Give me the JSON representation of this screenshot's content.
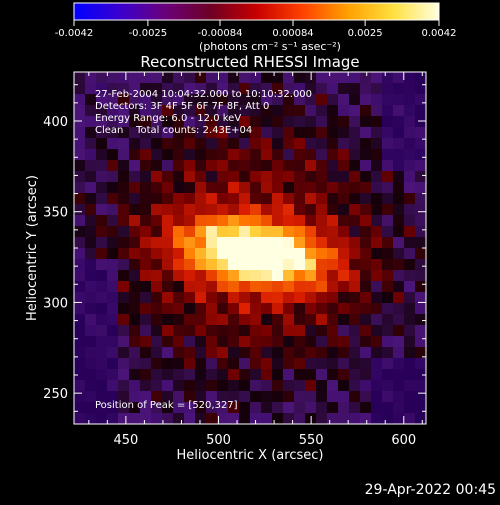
{
  "colorbar": {
    "tick_labels": [
      "-0.0042",
      "-0.0025",
      "-0.00084",
      "0.00084",
      "0.0025",
      "0.0042"
    ],
    "ticks": [
      -0.0042,
      -0.0025,
      -0.00084,
      0.00084,
      0.0025,
      0.0042
    ],
    "range": [
      -0.0042,
      0.0042
    ],
    "unit_label": "(photons cm⁻² s⁻¹ asec⁻²)",
    "colors": [
      "#0000ff",
      "#3a00d0",
      "#6a007a",
      "#6e0024",
      "#c80000",
      "#ff4000",
      "#ffa000",
      "#ffe040",
      "#ffffe0"
    ]
  },
  "chart_data": {
    "type": "heatmap",
    "title": "Reconstructed RHESSI Image",
    "xlabel": "Heliocentric X (arcsec)",
    "ylabel": "Heliocentric Y (arcsec)",
    "xlim": [
      422,
      612
    ],
    "ylim": [
      233,
      427
    ],
    "x_ticks": [
      450,
      500,
      550,
      600
    ],
    "y_ticks": [
      250,
      300,
      350,
      400
    ],
    "grid": false,
    "annotations": [
      "27-Feb-2004 10:04:32.000 to 10:10:32.000",
      "Detectors: 3F 4F 5F 6F 7F 8F, Att 0",
      "Energy Range: 6.0 - 12.0 keV",
      "Clean    Total counts: 2.43E+04"
    ],
    "peak_label": "Position of Peak = [520,327]",
    "peak": [
      520,
      327
    ]
  },
  "timestamp": "29-Apr-2022 00:45"
}
